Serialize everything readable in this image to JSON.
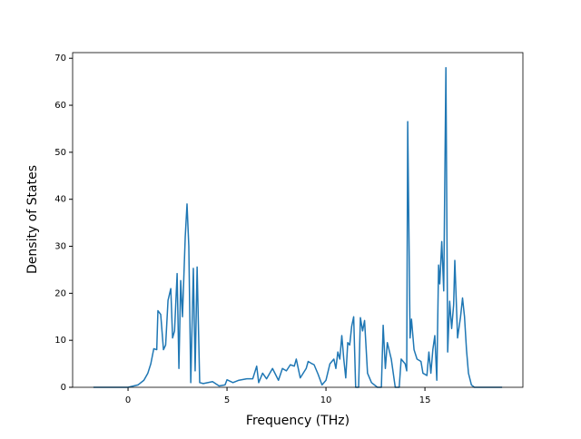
{
  "chart_data": {
    "type": "line",
    "xlabel": "Frequency (THz)",
    "ylabel": "Density of States",
    "x": [
      -1.75,
      0,
      0.5,
      0.8,
      1.0,
      1.15,
      1.3,
      1.45,
      1.51,
      1.65,
      1.79,
      1.9,
      2.02,
      2.16,
      2.25,
      2.35,
      2.48,
      2.57,
      2.66,
      2.75,
      2.89,
      2.98,
      3.07,
      3.17,
      3.3,
      3.39,
      3.49,
      3.62,
      3.8,
      4.27,
      4.6,
      4.9,
      5.0,
      5.3,
      5.6,
      6.0,
      6.3,
      6.5,
      6.6,
      6.8,
      7.0,
      7.3,
      7.6,
      7.8,
      8.0,
      8.2,
      8.4,
      8.5,
      8.7,
      9.0,
      9.1,
      9.3,
      9.4,
      9.6,
      9.8,
      10.0,
      10.2,
      10.4,
      10.5,
      10.6,
      10.7,
      10.8,
      10.9,
      11.0,
      11.1,
      11.2,
      11.3,
      11.4,
      11.5,
      11.65,
      11.74,
      11.85,
      11.95,
      12.1,
      12.3,
      12.6,
      12.8,
      12.89,
      13.0,
      13.1,
      13.3,
      13.5,
      13.7,
      13.8,
      14.0,
      14.08,
      14.13,
      14.25,
      14.32,
      14.45,
      14.6,
      14.8,
      14.9,
      15.1,
      15.2,
      15.3,
      15.4,
      15.5,
      15.6,
      15.69,
      15.75,
      15.85,
      15.95,
      16.06,
      16.15,
      16.25,
      16.35,
      16.45,
      16.51,
      16.65,
      16.8,
      16.9,
      17.0,
      17.1,
      17.2,
      17.35,
      17.5,
      18.9
    ],
    "series": [
      {
        "color": "#1f77b4",
        "values": [
          0,
          0,
          0.5,
          1.5,
          3,
          5,
          8.2,
          8,
          16.3,
          15.5,
          8,
          9,
          18.5,
          21,
          10.5,
          12,
          24.2,
          4,
          22.7,
          15,
          32,
          39,
          30,
          1,
          25.3,
          3.5,
          25.6,
          1,
          0.8,
          1.2,
          0.3,
          0.5,
          1.6,
          1,
          1.5,
          1.8,
          1.8,
          4.5,
          1,
          3,
          1.8,
          4,
          1.5,
          4,
          3.5,
          4.8,
          4.5,
          6,
          2,
          4,
          5.5,
          5,
          4.8,
          2.8,
          0.5,
          1.5,
          5,
          6,
          4,
          7.5,
          6,
          11,
          6,
          2,
          9.5,
          9,
          13,
          15,
          0,
          0,
          14.8,
          12,
          14.2,
          3,
          1,
          0,
          0,
          13.2,
          4,
          9.5,
          6,
          0,
          0,
          6,
          5,
          3.5,
          56.5,
          10.5,
          14.5,
          8,
          6,
          5.5,
          3,
          2.5,
          7.5,
          3,
          8,
          11,
          1.5,
          26,
          22,
          31,
          20.5,
          68,
          7.5,
          18.3,
          12.5,
          17.5,
          27,
          10.5,
          15,
          19,
          15,
          8,
          3,
          0.5,
          0,
          0
        ]
      }
    ],
    "xlim": [
      -2.8,
      19.95
    ],
    "ylim": [
      0,
      71.2
    ],
    "xticks": [
      0,
      5,
      10,
      15
    ],
    "yticks": [
      0,
      10,
      20,
      30,
      40,
      50,
      60,
      70
    ],
    "grid": false
  }
}
